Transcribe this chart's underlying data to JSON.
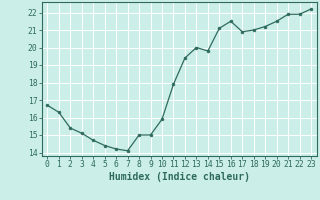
{
  "x": [
    0,
    1,
    2,
    3,
    4,
    5,
    6,
    7,
    8,
    9,
    10,
    11,
    12,
    13,
    14,
    15,
    16,
    17,
    18,
    19,
    20,
    21,
    22,
    23
  ],
  "y": [
    16.7,
    16.3,
    15.4,
    15.1,
    14.7,
    14.4,
    14.2,
    14.1,
    15.0,
    15.0,
    15.9,
    17.9,
    19.4,
    20.0,
    19.8,
    21.1,
    21.5,
    20.9,
    21.0,
    21.2,
    21.5,
    21.9,
    21.9,
    22.2
  ],
  "bg_color": "#cceee8",
  "line_color": "#2e6b5e",
  "marker_color": "#2e6b5e",
  "grid_color": "#aad8d0",
  "grid_major_color": "#ffffff",
  "xlabel": "Humidex (Indice chaleur)",
  "ylim": [
    13.8,
    22.6
  ],
  "xlim": [
    -0.5,
    23.5
  ],
  "yticks": [
    14,
    15,
    16,
    17,
    18,
    19,
    20,
    21,
    22
  ],
  "xticks": [
    0,
    1,
    2,
    3,
    4,
    5,
    6,
    7,
    8,
    9,
    10,
    11,
    12,
    13,
    14,
    15,
    16,
    17,
    18,
    19,
    20,
    21,
    22,
    23
  ],
  "tick_label_fontsize": 5.8,
  "xlabel_fontsize": 7.0
}
